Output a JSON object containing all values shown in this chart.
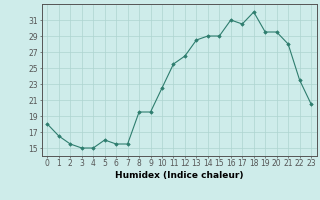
{
  "x": [
    0,
    1,
    2,
    3,
    4,
    5,
    6,
    7,
    8,
    9,
    10,
    11,
    12,
    13,
    14,
    15,
    16,
    17,
    18,
    19,
    20,
    21,
    22,
    23
  ],
  "y": [
    18,
    16.5,
    15.5,
    15,
    15,
    16,
    15.5,
    15.5,
    19.5,
    19.5,
    22.5,
    25.5,
    26.5,
    28.5,
    29,
    29,
    31,
    30.5,
    32,
    29.5,
    29.5,
    28,
    23.5,
    20.5
  ],
  "xlabel": "Humidex (Indice chaleur)",
  "xlim": [
    -0.5,
    23.5
  ],
  "ylim": [
    14.0,
    33.0
  ],
  "yticks": [
    15,
    17,
    19,
    21,
    23,
    25,
    27,
    29,
    31
  ],
  "xticks": [
    0,
    1,
    2,
    3,
    4,
    5,
    6,
    7,
    8,
    9,
    10,
    11,
    12,
    13,
    14,
    15,
    16,
    17,
    18,
    19,
    20,
    21,
    22,
    23
  ],
  "line_color": "#2e7d6e",
  "marker": "D",
  "marker_size": 1.8,
  "bg_color": "#ceecea",
  "grid_color": "#aed4d0",
  "spine_color": "#555555",
  "label_fontsize": 6.5,
  "tick_fontsize": 5.5
}
